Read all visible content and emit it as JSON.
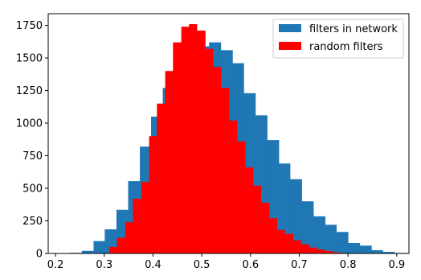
{
  "chart_data": {
    "type": "bar",
    "title": "",
    "xlabel": "",
    "ylabel": "",
    "xlim": [
      0.185,
      0.925
    ],
    "ylim": [
      0,
      1840
    ],
    "grid": false,
    "legend_placement": "top-right",
    "x_ticks": [
      0.2,
      0.3,
      0.4,
      0.5,
      0.6,
      0.7,
      0.8,
      0.9
    ],
    "x_tick_labels": [
      "0.2",
      "0.3",
      "0.4",
      "0.5",
      "0.6",
      "0.7",
      "0.8",
      "0.9"
    ],
    "y_ticks": [
      0,
      250,
      500,
      750,
      1000,
      1250,
      1500,
      1750
    ],
    "y_tick_labels": [
      "0",
      "250",
      "500",
      "750",
      "1000",
      "1250",
      "1500",
      "1750"
    ],
    "series": [
      {
        "name": "filters in network",
        "color": "#1f77b4",
        "bins": [
          [
            0.23,
            0.254,
            5
          ],
          [
            0.254,
            0.278,
            20
          ],
          [
            0.278,
            0.301,
            95
          ],
          [
            0.301,
            0.325,
            185
          ],
          [
            0.325,
            0.349,
            335
          ],
          [
            0.349,
            0.373,
            555
          ],
          [
            0.373,
            0.396,
            820
          ],
          [
            0.396,
            0.42,
            1050
          ],
          [
            0.42,
            0.444,
            1270
          ],
          [
            0.444,
            0.468,
            1420
          ],
          [
            0.468,
            0.491,
            1530
          ],
          [
            0.491,
            0.515,
            1590
          ],
          [
            0.515,
            0.539,
            1620
          ],
          [
            0.539,
            0.563,
            1560
          ],
          [
            0.563,
            0.586,
            1460
          ],
          [
            0.586,
            0.61,
            1230
          ],
          [
            0.61,
            0.634,
            1060
          ],
          [
            0.634,
            0.658,
            870
          ],
          [
            0.658,
            0.681,
            690
          ],
          [
            0.681,
            0.705,
            570
          ],
          [
            0.705,
            0.729,
            400
          ],
          [
            0.729,
            0.753,
            285
          ],
          [
            0.753,
            0.776,
            220
          ],
          [
            0.776,
            0.8,
            165
          ],
          [
            0.8,
            0.824,
            80
          ],
          [
            0.824,
            0.848,
            60
          ],
          [
            0.848,
            0.871,
            25
          ],
          [
            0.871,
            0.895,
            12
          ],
          [
            0.895,
            0.919,
            4
          ]
        ]
      },
      {
        "name": "random filters",
        "color": "#ff0000",
        "bins": [
          [
            0.31,
            0.326,
            50
          ],
          [
            0.326,
            0.343,
            120
          ],
          [
            0.343,
            0.359,
            240
          ],
          [
            0.359,
            0.376,
            420
          ],
          [
            0.376,
            0.392,
            550
          ],
          [
            0.392,
            0.408,
            900
          ],
          [
            0.408,
            0.425,
            1150
          ],
          [
            0.425,
            0.441,
            1400
          ],
          [
            0.441,
            0.458,
            1620
          ],
          [
            0.458,
            0.474,
            1740
          ],
          [
            0.474,
            0.49,
            1760
          ],
          [
            0.49,
            0.507,
            1710
          ],
          [
            0.507,
            0.523,
            1570
          ],
          [
            0.523,
            0.539,
            1430
          ],
          [
            0.539,
            0.556,
            1270
          ],
          [
            0.556,
            0.572,
            1020
          ],
          [
            0.572,
            0.589,
            860
          ],
          [
            0.589,
            0.605,
            660
          ],
          [
            0.605,
            0.621,
            520
          ],
          [
            0.621,
            0.638,
            390
          ],
          [
            0.638,
            0.654,
            270
          ],
          [
            0.654,
            0.67,
            180
          ],
          [
            0.67,
            0.687,
            150
          ],
          [
            0.687,
            0.703,
            100
          ],
          [
            0.703,
            0.72,
            70
          ],
          [
            0.72,
            0.736,
            45
          ],
          [
            0.736,
            0.752,
            30
          ],
          [
            0.752,
            0.769,
            18
          ],
          [
            0.769,
            0.785,
            8
          ]
        ]
      }
    ]
  }
}
